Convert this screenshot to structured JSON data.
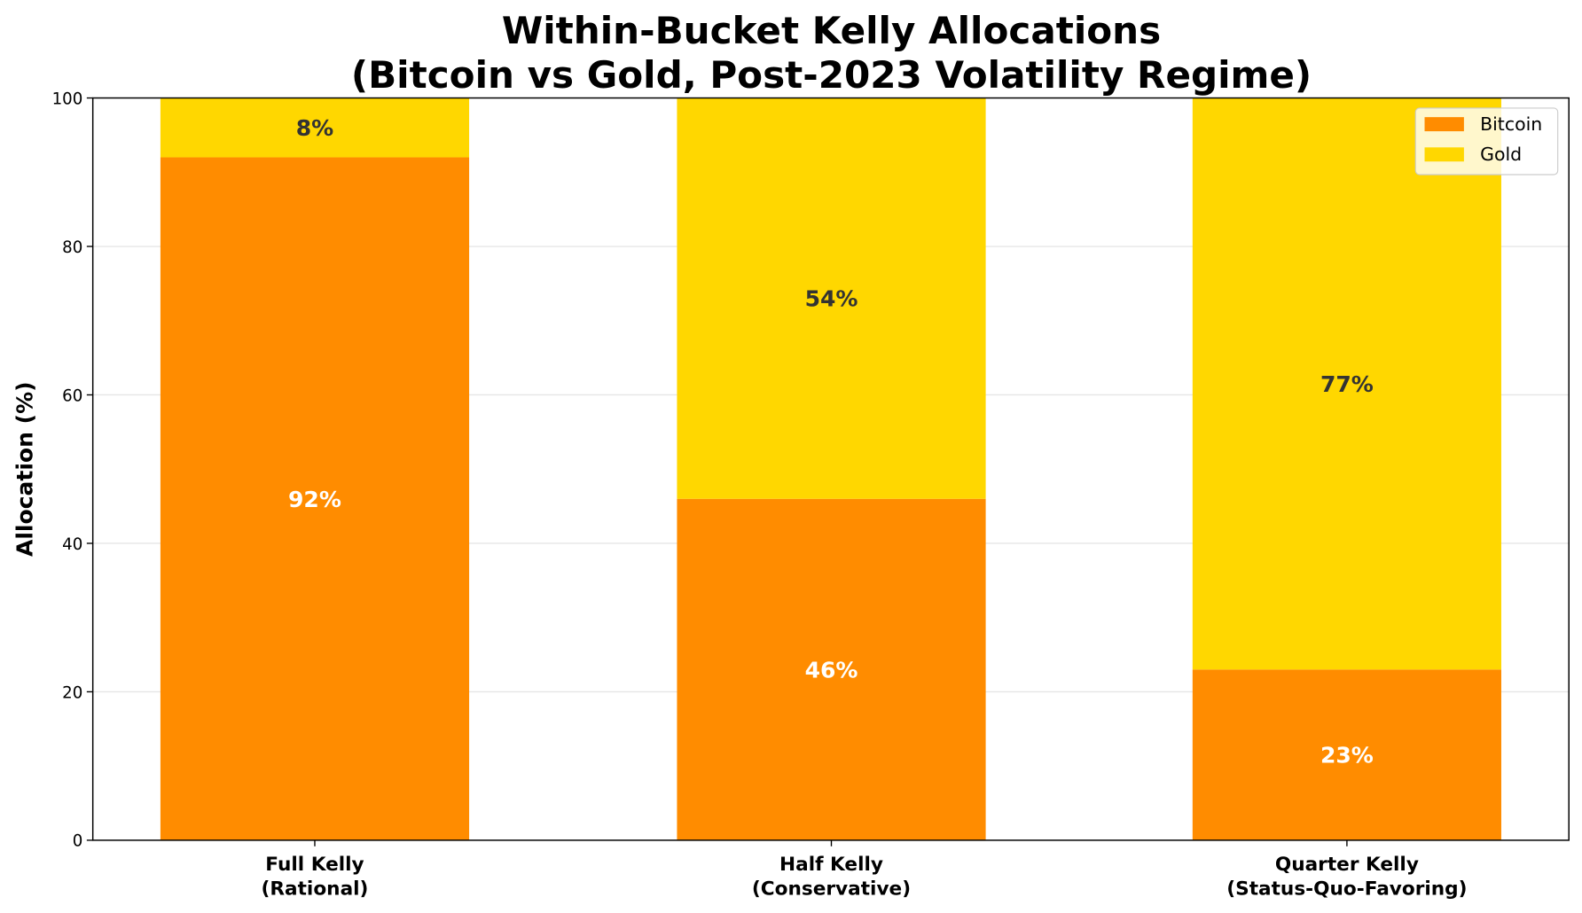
{
  "chart_data": {
    "type": "bar",
    "stacked": true,
    "title": "Within-Bucket Kelly Allocations\n(Bitcoin vs Gold, Post-2023 Volatility Regime)",
    "title_lines": [
      "Within-Bucket Kelly Allocations",
      "(Bitcoin vs Gold, Post-2023 Volatility Regime)"
    ],
    "xlabel": "",
    "ylabel": "Allocation (%)",
    "ylim": [
      0,
      100
    ],
    "yticks": [
      0,
      20,
      40,
      60,
      80,
      100
    ],
    "grid": "y",
    "legend": "top-right",
    "categories": [
      [
        "Full Kelly",
        "(Rational)"
      ],
      [
        "Half Kelly",
        "(Conservative)"
      ],
      [
        "Quarter Kelly",
        "(Status-Quo-Favoring)"
      ]
    ],
    "series": [
      {
        "name": "Bitcoin",
        "color": "#FF8C00",
        "label_color": "#ffffff",
        "values": [
          92,
          46,
          23
        ],
        "labels": [
          "92%",
          "46%",
          "23%"
        ]
      },
      {
        "name": "Gold",
        "color": "#FFD700",
        "label_color": "#333333",
        "values": [
          8,
          54,
          77
        ],
        "labels": [
          "8%",
          "54%",
          "77%"
        ]
      }
    ]
  }
}
